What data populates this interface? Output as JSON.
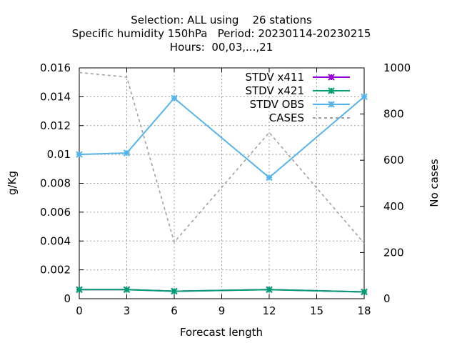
{
  "chart_data": {
    "type": "line",
    "title": [
      "Selection: ALL using    26 stations",
      "Specific humidity 150hPa   Period: 20230114-20230215",
      "Hours:  00,03,...,21"
    ],
    "xlabel": "Forecast length",
    "ylabel": "g/Kg",
    "y2label": "No cases",
    "xlim": [
      0,
      18
    ],
    "ylim": [
      0,
      0.016
    ],
    "y2lim": [
      0,
      1000
    ],
    "x_ticks": [
      0,
      3,
      6,
      9,
      12,
      15,
      18
    ],
    "y_ticks": [
      0,
      0.002,
      0.004,
      0.006,
      0.008,
      0.01,
      0.012,
      0.014,
      0.016
    ],
    "y_tick_labels": [
      "0",
      "0.002",
      "0.004",
      "0.006",
      "0.008",
      "0.01",
      "0.012",
      "0.014",
      "0.016"
    ],
    "y2_ticks": [
      0,
      200,
      400,
      600,
      800,
      1000
    ],
    "grid": true,
    "legend_position": "top-right",
    "x": [
      0,
      3,
      6,
      12,
      18
    ],
    "series": [
      {
        "name": "STDV x411",
        "axis": "y",
        "color": "#9400d3",
        "style": "solid",
        "marker": true,
        "values": [
          0.00063,
          0.00063,
          0.00052,
          0.00063,
          0.00047
        ]
      },
      {
        "name": "STDV x421",
        "axis": "y",
        "color": "#009e73",
        "style": "solid",
        "marker": true,
        "values": [
          0.00063,
          0.00063,
          0.00052,
          0.00063,
          0.00047
        ]
      },
      {
        "name": "STDV OBS",
        "axis": "y",
        "color": "#56b4e9",
        "style": "solid",
        "marker": true,
        "values": [
          0.01,
          0.0101,
          0.0139,
          0.0084,
          0.014
        ]
      },
      {
        "name": "CASES",
        "axis": "y2",
        "color": "#a0a0a0",
        "style": "dashed",
        "marker": false,
        "values": [
          980,
          960,
          245,
          720,
          240
        ]
      }
    ]
  }
}
